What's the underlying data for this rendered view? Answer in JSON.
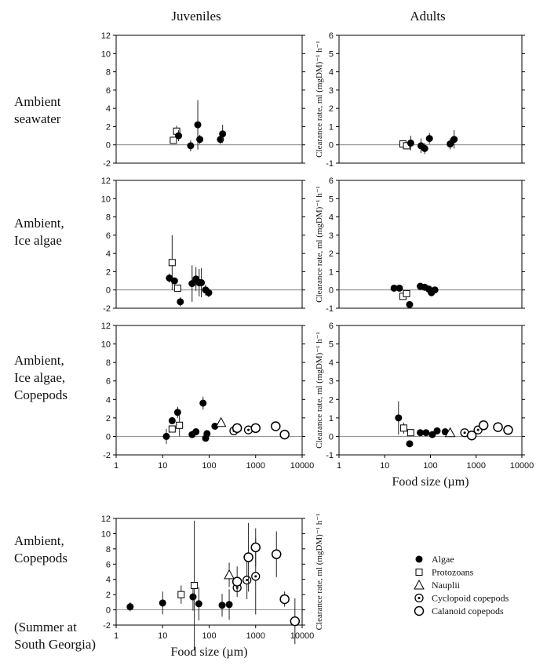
{
  "column_titles": [
    "Juveniles",
    "Adults"
  ],
  "row_labels": [
    [
      "Ambient",
      "seawater"
    ],
    [
      "Ambient,",
      "Ice algae"
    ],
    [
      "Ambient,",
      "Ice algae,",
      "Copepods"
    ],
    [
      "Ambient,",
      "Copepods"
    ]
  ],
  "row_note": [
    "(Summer at",
    "South Georgia)"
  ],
  "legend": [
    {
      "name": "Algae",
      "marker": "filled-circle"
    },
    {
      "name": "Protozoans",
      "marker": "open-square"
    },
    {
      "name": "Nauplii",
      "marker": "open-triangle"
    },
    {
      "name": "Cyclopoid  copepods",
      "marker": "dotted-circle"
    },
    {
      "name": "Calanoid copepods",
      "marker": "open-circle"
    }
  ],
  "chart_data": [
    {
      "type": "scatter",
      "log_x": true,
      "xlim": [
        1,
        10000
      ],
      "ylim": [
        -2,
        12
      ],
      "yticks": [
        -2,
        0,
        2,
        4,
        6,
        8,
        10,
        12
      ],
      "series": [
        {
          "marker": "open-square",
          "x": [
            17,
            20
          ],
          "values": [
            0.5,
            1.5
          ],
          "errors": [
            null,
            0.6
          ]
        },
        {
          "marker": "filled-circle",
          "x": [
            22,
            40,
            57,
            63,
            175,
            195
          ],
          "values": [
            1.0,
            -0.1,
            2.2,
            0.6,
            0.6,
            1.2
          ],
          "errors": [
            0.6,
            0.6,
            2.7,
            0.5,
            0.5,
            1.0
          ]
        }
      ]
    },
    {
      "type": "scatter",
      "log_x": true,
      "xlim": [
        1,
        10000
      ],
      "ylim": [
        -1,
        6
      ],
      "yticks": [
        -1,
        0,
        1,
        2,
        3,
        4,
        5,
        6
      ],
      "y_label": "Clearance rate, ml (mgDM)⁻¹ h⁻¹",
      "series": [
        {
          "marker": "open-square",
          "x": [
            25,
            30
          ],
          "values": [
            0.05,
            -0.05
          ],
          "errors": [
            null,
            null
          ]
        },
        {
          "marker": "filled-circle",
          "x": [
            37,
            62,
            75,
            95,
            270,
            330
          ],
          "values": [
            0.1,
            -0.05,
            -0.2,
            0.35,
            0.05,
            0.3
          ],
          "errors": [
            0.4,
            0.4,
            0.3,
            0.3,
            0.3,
            0.5
          ]
        }
      ]
    },
    {
      "type": "scatter",
      "log_x": true,
      "xlim": [
        1,
        10000
      ],
      "ylim": [
        -2,
        12
      ],
      "yticks": [
        -2,
        0,
        2,
        4,
        6,
        8,
        10,
        12
      ],
      "series": [
        {
          "marker": "open-square",
          "x": [
            16,
            21
          ],
          "values": [
            3.0,
            0.2
          ],
          "errors": [
            3.0,
            null
          ]
        },
        {
          "marker": "filled-circle",
          "x": [
            14,
            18,
            24,
            43,
            52,
            61,
            68,
            84,
            98
          ],
          "values": [
            1.3,
            1.0,
            -1.3,
            0.7,
            1.2,
            0.8,
            0.8,
            0.0,
            -0.3
          ],
          "errors": [
            0.5,
            null,
            0.5,
            2.0,
            1.3,
            1.5,
            1.6,
            0.6,
            0.5
          ]
        }
      ]
    },
    {
      "type": "scatter",
      "log_x": true,
      "xlim": [
        1,
        10000
      ],
      "ylim": [
        -1,
        6
      ],
      "yticks": [
        -1,
        0,
        1,
        2,
        3,
        4,
        5,
        6
      ],
      "y_label": "Clearance rate, ml (mgDM)⁻¹ h⁻¹",
      "series": [
        {
          "marker": "filled-circle",
          "x": [
            16,
            21,
            35,
            60,
            75,
            92,
            105,
            125
          ],
          "values": [
            0.1,
            0.1,
            -0.8,
            0.2,
            0.15,
            0.05,
            -0.15,
            0.0
          ],
          "errors": [
            null,
            null,
            null,
            null,
            null,
            null,
            null,
            null
          ]
        },
        {
          "marker": "open-square",
          "x": [
            25,
            30
          ],
          "values": [
            -0.35,
            -0.2
          ],
          "errors": [
            null,
            null
          ]
        }
      ]
    },
    {
      "type": "scatter",
      "log_x": true,
      "xlim": [
        1,
        10000
      ],
      "xticks": [
        1,
        10,
        100,
        1000,
        10000
      ],
      "ylim": [
        -2,
        12
      ],
      "yticks": [
        -2,
        0,
        2,
        4,
        6,
        8,
        10,
        12
      ],
      "series": [
        {
          "marker": "filled-circle",
          "x": [
            12,
            16,
            21,
            43,
            52,
            74,
            84,
            90,
            133
          ],
          "values": [
            0,
            1.7,
            2.6,
            0.2,
            0.5,
            3.6,
            -0.2,
            0.3,
            1.1
          ],
          "errors": [
            0.8,
            null,
            0.6,
            null,
            null,
            0.7,
            null,
            null,
            null
          ]
        },
        {
          "marker": "open-square",
          "x": [
            16,
            23
          ],
          "values": [
            0.8,
            1.2
          ],
          "errors": [
            null,
            1.2
          ]
        },
        {
          "marker": "open-triangle",
          "x": [
            180
          ],
          "values": [
            1.5
          ],
          "errors": [
            null
          ]
        },
        {
          "marker": "dotted-circle",
          "x": [
            340,
            700
          ],
          "values": [
            0.6,
            0.7
          ],
          "errors": [
            null,
            null
          ]
        },
        {
          "marker": "open-circle",
          "x": [
            400,
            1000,
            2700,
            4200
          ],
          "values": [
            0.9,
            0.9,
            1.1,
            0.2
          ],
          "errors": [
            null,
            null,
            null,
            null
          ]
        }
      ]
    },
    {
      "type": "scatter",
      "log_x": true,
      "xlim": [
        1,
        10000
      ],
      "xticks": [
        1,
        10,
        100,
        1000,
        10000
      ],
      "ylim": [
        -1,
        6
      ],
      "yticks": [
        -1,
        0,
        1,
        2,
        3,
        4,
        5,
        6
      ],
      "y_label": "Clearance rate, ml (mgDM)⁻¹ h⁻¹",
      "x_label": "Food size (µm)",
      "series": [
        {
          "marker": "filled-circle",
          "x": [
            20,
            35,
            60,
            80,
            110,
            140,
            210
          ],
          "values": [
            1.0,
            -0.4,
            0.2,
            0.2,
            0.1,
            0.3,
            0.25
          ],
          "errors": [
            0.9,
            null,
            null,
            null,
            null,
            null,
            null
          ]
        },
        {
          "marker": "open-square",
          "x": [
            26,
            37
          ],
          "values": [
            0.45,
            0.2
          ],
          "errors": [
            0.3,
            null
          ]
        },
        {
          "marker": "open-triangle",
          "x": [
            270
          ],
          "values": [
            0.2
          ],
          "errors": [
            null
          ]
        },
        {
          "marker": "dotted-circle",
          "x": [
            560,
            1100
          ],
          "values": [
            0.2,
            0.35
          ],
          "errors": [
            null,
            null
          ]
        },
        {
          "marker": "open-circle",
          "x": [
            800,
            1450,
            3000,
            5000
          ],
          "values": [
            0.05,
            0.6,
            0.5,
            0.35
          ],
          "errors": [
            null,
            null,
            null,
            null
          ]
        }
      ]
    },
    {
      "type": "scatter",
      "log_x": true,
      "xlim": [
        1,
        10000
      ],
      "xticks": [
        1,
        10,
        100,
        1000,
        10000
      ],
      "ylim": [
        -2,
        12
      ],
      "yticks": [
        -2,
        0,
        2,
        4,
        6,
        8,
        10,
        12
      ],
      "y_label": "Clearance rate, ml (mgDM)⁻¹ h⁻¹",
      "x_label": "Food size (µm)",
      "series": [
        {
          "marker": "filled-circle",
          "x": [
            2,
            10,
            45,
            60,
            190,
            270
          ],
          "values": [
            0.4,
            0.9,
            1.7,
            0.8,
            0.6,
            0.7
          ],
          "errors": [
            0.6,
            1.5,
            1.8,
            2.2,
            1.5,
            2.0
          ]
        },
        {
          "marker": "open-square",
          "x": [
            25,
            48
          ],
          "values": [
            2.0,
            3.2
          ],
          "errors": [
            1.2,
            8.5
          ]
        },
        {
          "marker": "open-triangle",
          "x": [
            270
          ],
          "values": [
            4.6
          ],
          "errors": [
            1.6
          ]
        },
        {
          "marker": "dotted-circle",
          "x": [
            400,
            650,
            1000
          ],
          "values": [
            2.9,
            3.9,
            4.4
          ],
          "errors": [
            0.6,
            2.5,
            5.0
          ]
        },
        {
          "marker": "open-circle",
          "x": [
            400,
            700,
            1000,
            2800,
            4200,
            7000
          ],
          "values": [
            3.7,
            6.9,
            8.2,
            7.3,
            1.4,
            -1.5
          ],
          "errors": [
            2.0,
            4.5,
            2.5,
            3.0,
            1.0,
            3.0
          ]
        }
      ]
    }
  ]
}
